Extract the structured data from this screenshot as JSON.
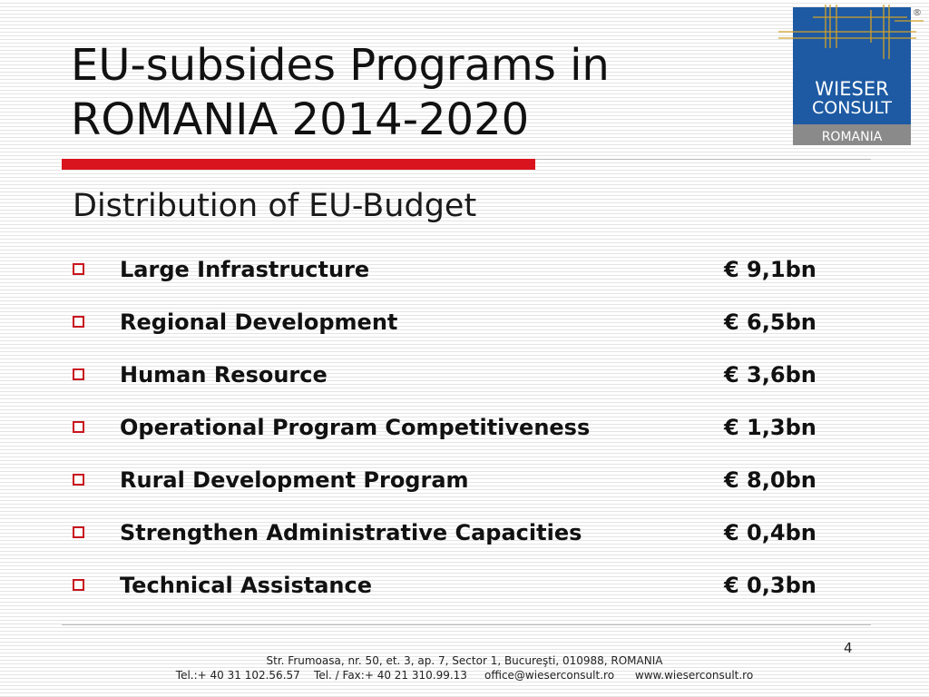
{
  "slide": {
    "title_line1": "EU-subsides Programs in",
    "title_line2": "ROMANIA 2014-2020",
    "subtitle": "Distribution of EU-Budget",
    "page_number": "4"
  },
  "logo": {
    "line1": "WIESER",
    "line2": "CONSULT",
    "line3": "ROMANIA",
    "registered": "®",
    "colors": {
      "blue": "#1d5aa3",
      "gold": "#d2a028",
      "gray": "#8a8a8a"
    }
  },
  "items": [
    {
      "label": "Large Infrastructure",
      "amount": "€ 9,1bn"
    },
    {
      "label": "Regional Development",
      "amount": "€ 6,5bn"
    },
    {
      "label": "Human Resource",
      "amount": "€ 3,6bn"
    },
    {
      "label": "Operational Program Competitiveness",
      "amount": "€ 1,3bn"
    },
    {
      "label": "Rural Development Program",
      "amount": "€ 8,0bn"
    },
    {
      "label": "Strengthen Administrative Capacities",
      "amount": "€ 0,4bn"
    },
    {
      "label": "Technical Assistance",
      "amount": "€ 0,3bn"
    }
  ],
  "footer": {
    "address": "Str. Frumoasa, nr. 50, et. 3, ap. 7, Sector 1, Bucureşti, 010988, ROMANIA",
    "contact": "Tel.:+ 40 31 102.56.57    Tel. / Fax:+ 40 21 310.99.13     office@wieserconsult.ro      www.wieserconsult.ro"
  },
  "theme": {
    "accent_red": "#d9141e",
    "bullet_red": "#c8141e"
  }
}
